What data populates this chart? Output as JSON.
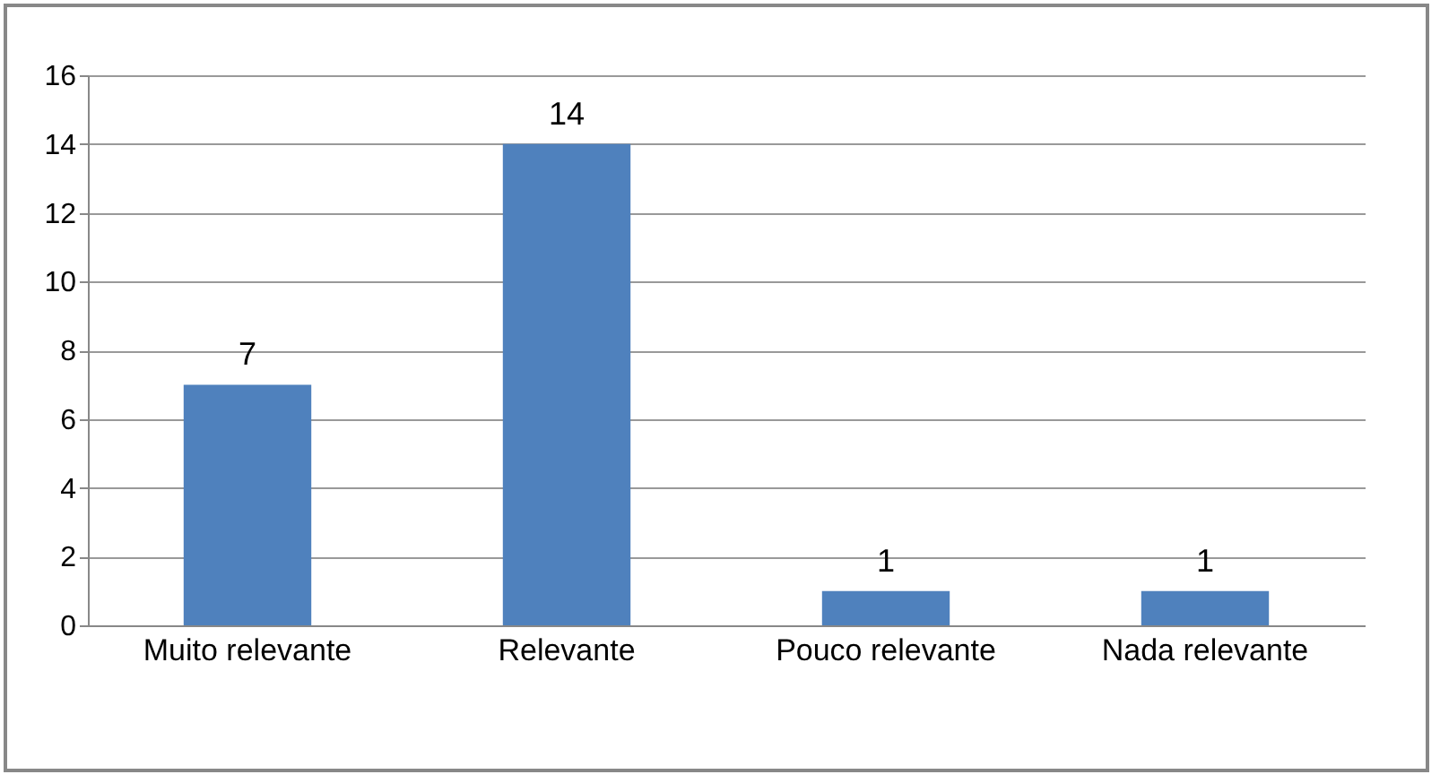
{
  "chart_data": {
    "type": "bar",
    "categories": [
      "Muito relevante",
      "Relevante",
      "Pouco relevante",
      "Nada relevante"
    ],
    "values": [
      7,
      14,
      1,
      1
    ],
    "color": "#4f81bd",
    "ylim": [
      0,
      16
    ],
    "yticks": [
      0,
      2,
      4,
      6,
      8,
      10,
      12,
      14,
      16
    ],
    "grid": "y",
    "data_labels": true
  }
}
